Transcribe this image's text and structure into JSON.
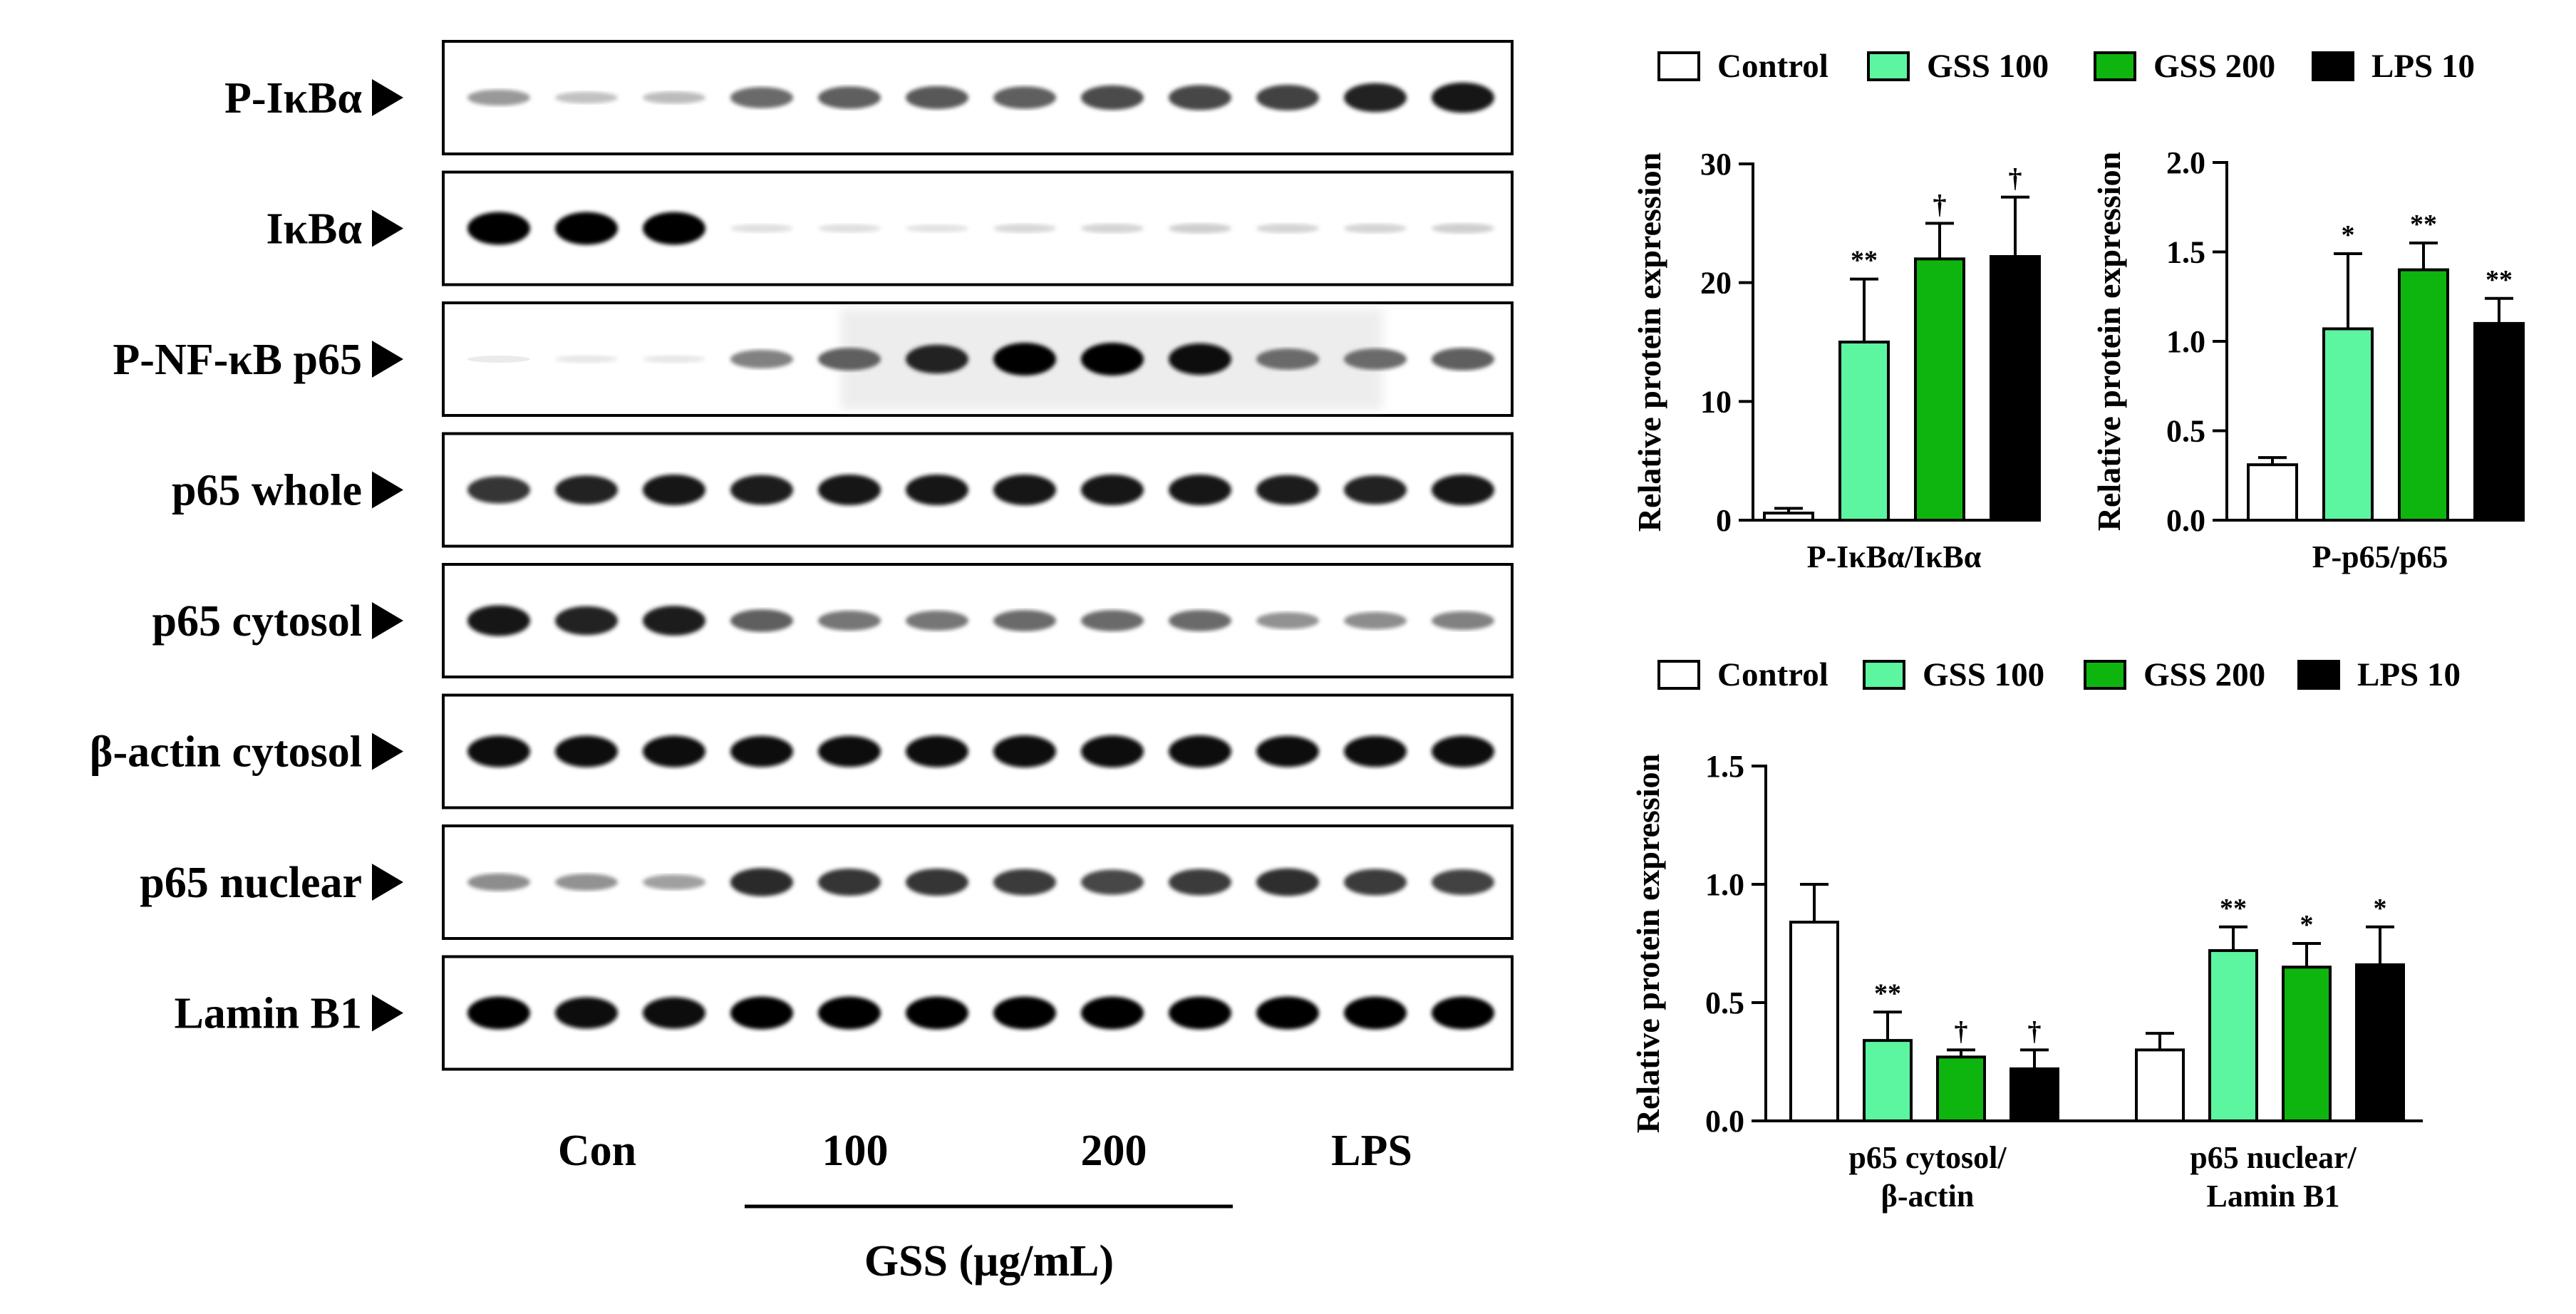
{
  "blot": {
    "rows": [
      {
        "label": "P-IκBα",
        "intensity": [
          0.35,
          0.18,
          0.2,
          0.55,
          0.6,
          0.62,
          0.6,
          0.68,
          0.7,
          0.72,
          0.85,
          0.9
        ],
        "noise": 0
      },
      {
        "label": "IκBα",
        "intensity": [
          1.0,
          1.0,
          1.0,
          0.05,
          0.05,
          0.04,
          0.08,
          0.1,
          0.12,
          0.1,
          0.1,
          0.12
        ],
        "noise": 0
      },
      {
        "label": "P-NF-κB p65",
        "intensity": [
          0.0,
          0.02,
          0.02,
          0.45,
          0.6,
          0.85,
          1.0,
          1.0,
          0.95,
          0.55,
          0.55,
          0.6
        ],
        "noise": 1
      },
      {
        "label": "p65 whole",
        "intensity": [
          0.78,
          0.85,
          0.92,
          0.88,
          0.92,
          0.92,
          0.92,
          0.92,
          0.92,
          0.88,
          0.85,
          0.92
        ],
        "noise": 0
      },
      {
        "label": "p65 cytosol",
        "intensity": [
          0.92,
          0.85,
          0.88,
          0.6,
          0.5,
          0.5,
          0.55,
          0.55,
          0.55,
          0.38,
          0.4,
          0.45
        ],
        "noise": 0
      },
      {
        "label": "β-actin cytosol",
        "intensity": [
          0.95,
          0.95,
          0.95,
          0.93,
          0.93,
          0.95,
          0.97,
          0.97,
          0.97,
          0.93,
          0.93,
          0.95
        ],
        "noise": 0
      },
      {
        "label": "p65 nuclear",
        "intensity": [
          0.4,
          0.38,
          0.32,
          0.82,
          0.78,
          0.78,
          0.75,
          0.7,
          0.75,
          0.8,
          0.75,
          0.72
        ],
        "noise": 0
      },
      {
        "label": "Lamin B1",
        "intensity": [
          1.0,
          0.95,
          0.95,
          1.0,
          1.0,
          1.0,
          1.0,
          1.0,
          1.0,
          1.0,
          1.0,
          1.0
        ],
        "noise": 0
      }
    ],
    "groups": [
      "Con",
      "100",
      "200",
      "LPS"
    ],
    "xaxis_label": "GSS (μg/mL)"
  },
  "legend": {
    "items": [
      {
        "label": "Control",
        "color": "#ffffff"
      },
      {
        "label": "GSS 100",
        "color": "#5cf5a0"
      },
      {
        "label": "GSS 200",
        "color": "#0fb50f"
      },
      {
        "label": "LPS 10",
        "color": "#000000"
      }
    ]
  },
  "chart_data": [
    {
      "type": "bar",
      "categories": [
        "P-IκBα/IκBα"
      ],
      "series": [
        {
          "name": "Control",
          "values": [
            0.6
          ],
          "errors": [
            0.4
          ],
          "marks": [
            ""
          ]
        },
        {
          "name": "GSS 100",
          "values": [
            15.0
          ],
          "errors": [
            5.3
          ],
          "marks": [
            "**"
          ]
        },
        {
          "name": "GSS 200",
          "values": [
            22.0
          ],
          "errors": [
            3.0
          ],
          "marks": [
            "†"
          ]
        },
        {
          "name": "LPS 10",
          "values": [
            22.2
          ],
          "errors": [
            5.0
          ],
          "marks": [
            "†"
          ]
        }
      ],
      "ylabel": "Relative protein expression",
      "ylim": [
        0,
        30
      ],
      "yticks": [
        "0",
        "10",
        "20",
        "30"
      ]
    },
    {
      "type": "bar",
      "categories": [
        "P-p65/p65"
      ],
      "series": [
        {
          "name": "Control",
          "values": [
            0.31
          ],
          "errors": [
            0.04
          ],
          "marks": [
            ""
          ]
        },
        {
          "name": "GSS 100",
          "values": [
            1.07
          ],
          "errors": [
            0.42
          ],
          "marks": [
            "*"
          ]
        },
        {
          "name": "GSS 200",
          "values": [
            1.4
          ],
          "errors": [
            0.15
          ],
          "marks": [
            "**"
          ]
        },
        {
          "name": "LPS 10",
          "values": [
            1.1
          ],
          "errors": [
            0.14
          ],
          "marks": [
            "**"
          ]
        }
      ],
      "ylabel": "Relative protein expression",
      "ylim": [
        0,
        2.0
      ],
      "yticks": [
        "0.0",
        "0.5",
        "1.0",
        "1.5",
        "2.0"
      ]
    },
    {
      "type": "bar",
      "categories": [
        "p65 cytosol/\nβ-actin",
        "p65 nuclear/\nLamin B1"
      ],
      "series": [
        {
          "name": "Control",
          "values": [
            0.84,
            0.3
          ],
          "errors": [
            0.16,
            0.07
          ],
          "marks": [
            "",
            ""
          ]
        },
        {
          "name": "GSS 100",
          "values": [
            0.34,
            0.72
          ],
          "errors": [
            0.12,
            0.1
          ],
          "marks": [
            "**",
            "**"
          ]
        },
        {
          "name": "GSS 200",
          "values": [
            0.27,
            0.65
          ],
          "errors": [
            0.03,
            0.1
          ],
          "marks": [
            "†",
            "*"
          ]
        },
        {
          "name": "LPS 10",
          "values": [
            0.22,
            0.66
          ],
          "errors": [
            0.08,
            0.16
          ],
          "marks": [
            "†",
            "*"
          ]
        }
      ],
      "ylabel": "Relative protein expression",
      "ylim": [
        0,
        1.5
      ],
      "yticks": [
        "0.0",
        "0.5",
        "1.0",
        "1.5"
      ]
    }
  ]
}
